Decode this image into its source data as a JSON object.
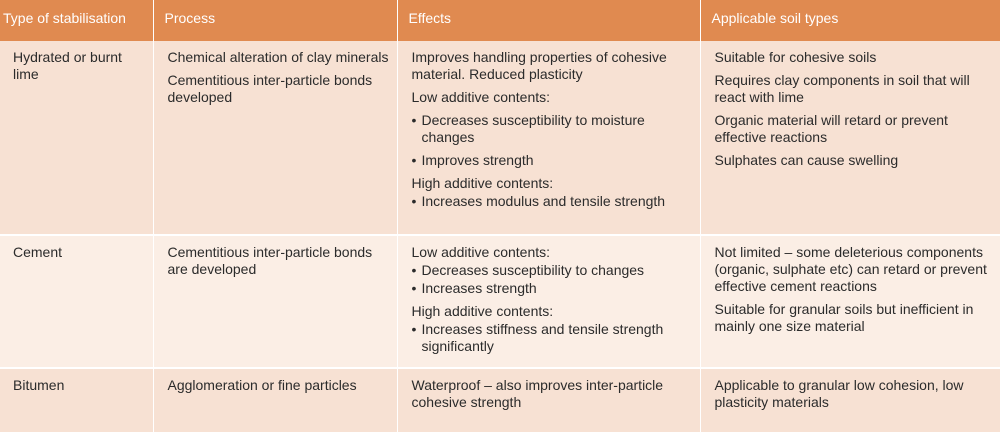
{
  "header": {
    "type": "Type of stabilisation",
    "process": "Process",
    "effects": "Effects",
    "soils": "Applicable soil types"
  },
  "bullet": "•",
  "rows": [
    {
      "type": "Hydrated or burnt lime",
      "process": [
        "Chemical alteration of clay minerals",
        "Cementitious inter-particle bonds developed"
      ],
      "effects": {
        "intro": "Improves handling properties of cohesive material. Reduced plasticity",
        "low_heading": "Low additive contents:",
        "low_items": [
          "Decreases susceptibility to moisture changes",
          "Improves strength"
        ],
        "high_heading": "High additive contents:",
        "high_items": [
          "Increases modulus and tensile strength"
        ]
      },
      "soils": [
        "Suitable for cohesive soils",
        "Requires clay components in soil that will react with lime",
        "Organic material will retard or prevent effective reactions",
        "Sulphates can cause swelling"
      ]
    },
    {
      "type": "Cement",
      "process": [
        "Cementitious inter-particle bonds are developed"
      ],
      "effects": {
        "low_heading": "Low additive contents:",
        "low_items": [
          "Decreases susceptibility to changes",
          "Increases strength"
        ],
        "high_heading": "High additive contents:",
        "high_items": [
          "Increases stiffness and tensile strength significantly"
        ]
      },
      "soils": [
        "Not limited – some deleterious components (organic, sulphate etc) can retard or prevent effective cement reactions",
        "Suitable for granular soils but inefficient in mainly one size material"
      ]
    },
    {
      "type": "Bitumen",
      "process": [
        "Agglomeration or fine particles"
      ],
      "effects": {
        "intro": "Waterproof – also improves inter-particle cohesive strength"
      },
      "soils": [
        "Applicable to granular low cohesion, low plasticity materials"
      ]
    }
  ]
}
